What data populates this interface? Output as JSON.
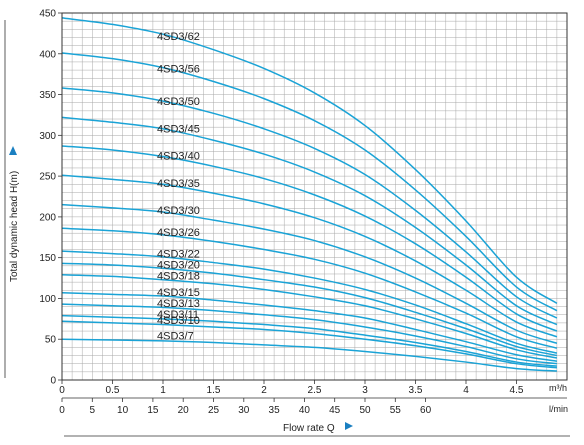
{
  "chart_data": {
    "type": "line",
    "xlabel": "Flow rate Q",
    "ylabel": "Total dynamic head H(m)",
    "x_unit": "m³/h",
    "x2_unit": "l/min",
    "xlim": [
      0,
      5
    ],
    "ylim": [
      0,
      450
    ],
    "x_ticks": [
      "0",
      "0.5",
      "1",
      "1.5",
      "2",
      "2.5",
      "3",
      "3.5",
      "4",
      "4.5"
    ],
    "x2_ticks": [
      "0",
      "5",
      "10",
      "15",
      "20",
      "25",
      "30",
      "35",
      "40",
      "45",
      "50",
      "55",
      "60"
    ],
    "y_ticks": [
      "0",
      "50",
      "100",
      "150",
      "200",
      "250",
      "300",
      "350",
      "400",
      "450"
    ],
    "grid": true,
    "line_color": "#1aa3d6",
    "x": [
      0,
      0.5,
      1,
      1.5,
      2,
      2.5,
      3,
      3.5,
      4,
      4.5,
      4.9
    ],
    "series": [
      {
        "name": "4SD3/62",
        "values": [
          444,
          436,
          424,
          405,
          382,
          352,
          312,
          258,
          195,
          126,
          94
        ]
      },
      {
        "name": "4SD3/56",
        "values": [
          401,
          394,
          383,
          366,
          345,
          318,
          282,
          233,
          176,
          114,
          85
        ]
      },
      {
        "name": "4SD3/50",
        "values": [
          358,
          352,
          342,
          327,
          308,
          284,
          252,
          208,
          157,
          102,
          76
        ]
      },
      {
        "name": "4SD3/45",
        "values": [
          322,
          316,
          308,
          294,
          277,
          255,
          226,
          187,
          141,
          91,
          68
        ]
      },
      {
        "name": "4SD3/40",
        "values": [
          287,
          282,
          274,
          262,
          247,
          227,
          201,
          167,
          126,
          81,
          60
        ]
      },
      {
        "name": "4SD3/35",
        "values": [
          251,
          246,
          240,
          229,
          216,
          199,
          176,
          146,
          110,
          71,
          53
        ]
      },
      {
        "name": "4SD3/30",
        "values": [
          215,
          211,
          206,
          196,
          185,
          171,
          151,
          125,
          94,
          61,
          45
        ]
      },
      {
        "name": "4SD3/26",
        "values": [
          186,
          183,
          178,
          170,
          160,
          148,
          131,
          108,
          82,
          53,
          39
        ]
      },
      {
        "name": "4SD3/22",
        "values": [
          158,
          155,
          151,
          144,
          136,
          125,
          111,
          92,
          69,
          45,
          33
        ]
      },
      {
        "name": "4SD3/20",
        "values": [
          143,
          141,
          137,
          131,
          123,
          114,
          101,
          83,
          63,
          41,
          30
        ]
      },
      {
        "name": "4SD3/18",
        "values": [
          129,
          127,
          123,
          118,
          111,
          102,
          91,
          75,
          57,
          37,
          27
        ]
      },
      {
        "name": "4SD3/15",
        "values": [
          107,
          105,
          103,
          98,
          92,
          85,
          76,
          62,
          47,
          31,
          23
        ]
      },
      {
        "name": "4SD3/13",
        "values": [
          93,
          91,
          89,
          85,
          80,
          74,
          65,
          54,
          41,
          26,
          20
        ]
      },
      {
        "name": "4SD3/11",
        "values": [
          79,
          77,
          75,
          72,
          68,
          63,
          55,
          46,
          35,
          22,
          17
        ]
      },
      {
        "name": "4SD3/10",
        "values": [
          72,
          70,
          68,
          65,
          62,
          57,
          50,
          42,
          32,
          20,
          15
        ]
      },
      {
        "name": "4SD3/7",
        "values": [
          50,
          49,
          48,
          46,
          43,
          40,
          35,
          29,
          22,
          14,
          11
        ]
      }
    ]
  }
}
